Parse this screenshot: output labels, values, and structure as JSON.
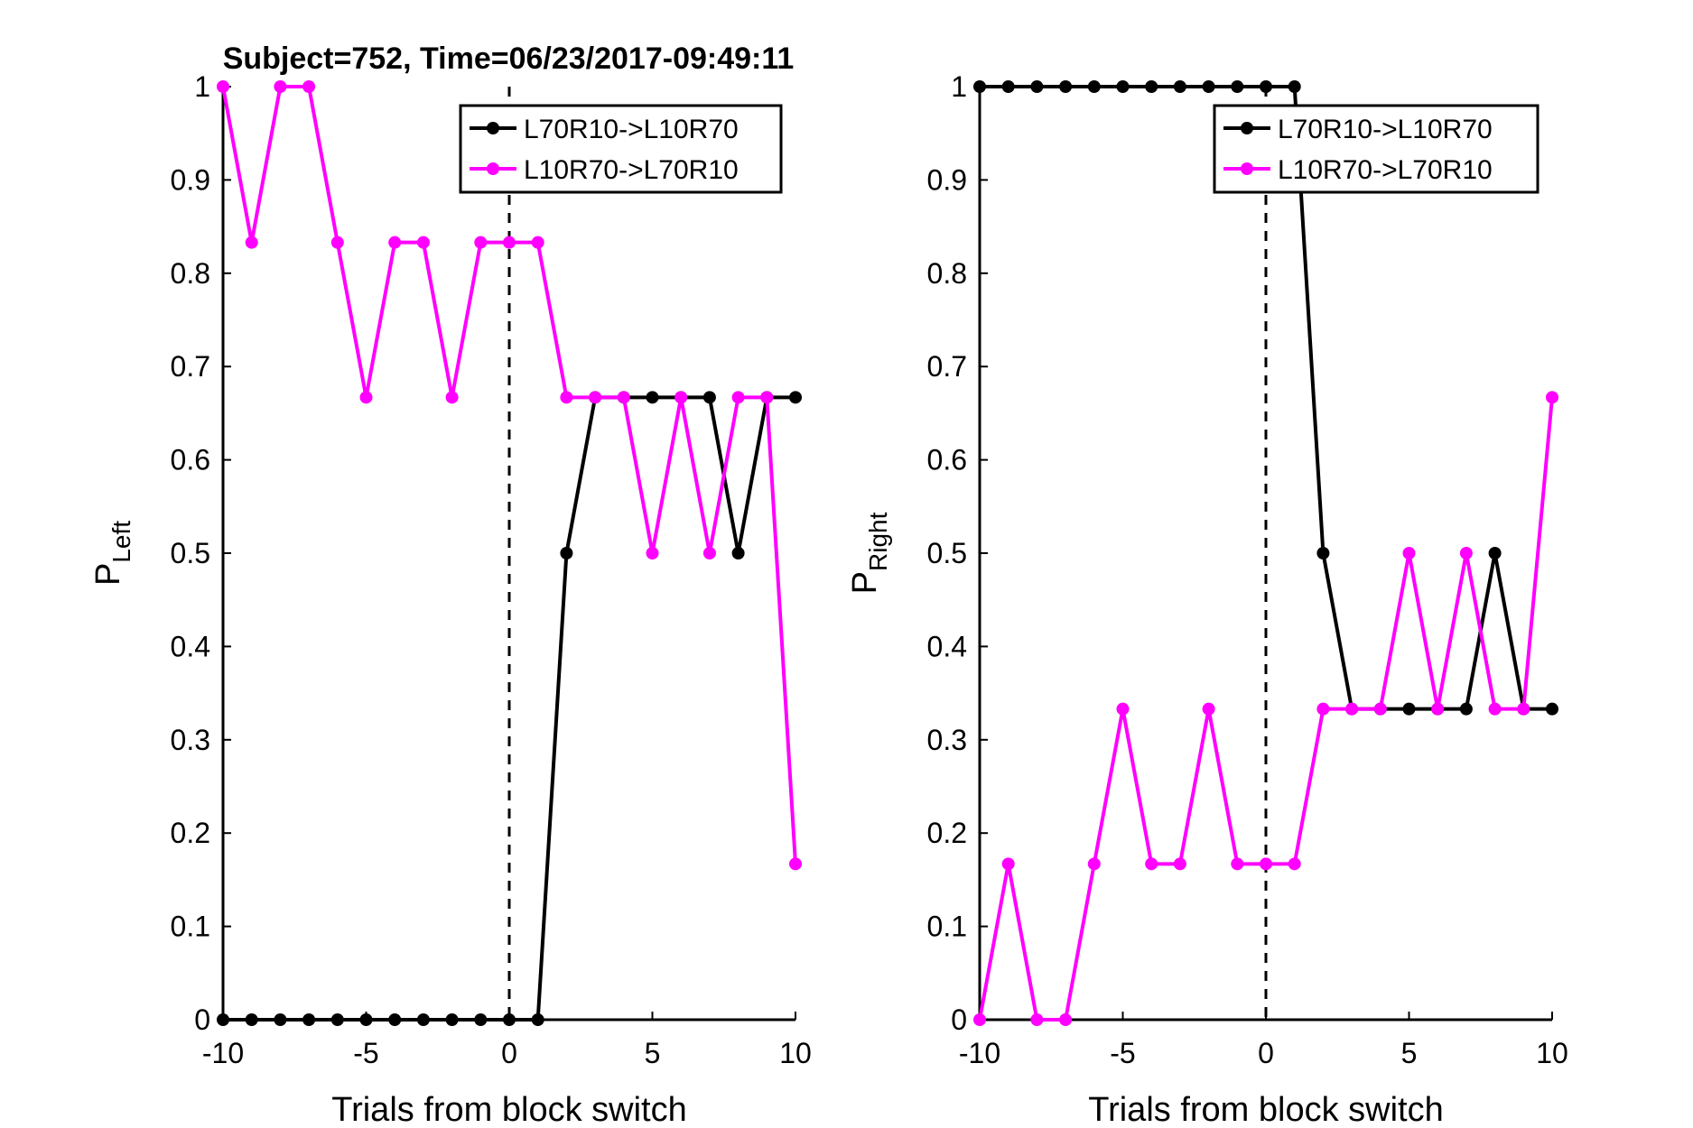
{
  "figure_title": "Subject=752, Time=06/23/2017-09:49:11",
  "colors": {
    "series_0": "#000000",
    "series_1": "#ff00ff",
    "axes": "#000000",
    "background": "#ffffff"
  },
  "chart_data": [
    {
      "type": "line",
      "title": "Subject=752, Time=06/23/2017-09:49:11",
      "xlabel": "Trials from block switch",
      "ylabel": "P",
      "ylabel_sub": "Left",
      "xlim": [
        -10,
        10
      ],
      "ylim": [
        0,
        1
      ],
      "x_ticks": [
        -10,
        -5,
        0,
        5,
        10
      ],
      "x_tick_labels": [
        "-10",
        "-5",
        "0",
        "5",
        "10"
      ],
      "y_ticks": [
        0,
        0.1,
        0.2,
        0.3,
        0.4,
        0.5,
        0.6,
        0.7,
        0.8,
        0.9,
        1
      ],
      "y_tick_labels": [
        "0",
        "0.1",
        "0.2",
        "0.3",
        "0.4",
        "0.5",
        "0.6",
        "0.7",
        "0.8",
        "0.9",
        "1"
      ],
      "vline_x": 0,
      "grid": false,
      "legend_position": "top-right",
      "x": [
        -10,
        -9,
        -8,
        -7,
        -6,
        -5,
        -4,
        -3,
        -2,
        -1,
        0,
        1,
        2,
        3,
        4,
        5,
        6,
        7,
        8,
        9,
        10
      ],
      "series": [
        {
          "name": "L70R10->L10R70",
          "color": "#000000",
          "values": [
            0,
            0,
            0,
            0,
            0,
            0,
            0,
            0,
            0,
            0,
            0,
            0,
            0.5,
            0.667,
            0.667,
            0.667,
            0.667,
            0.667,
            0.5,
            0.667,
            0.667
          ]
        },
        {
          "name": "L10R70->L70R10",
          "color": "#ff00ff",
          "values": [
            1,
            0.833,
            1,
            1,
            0.833,
            0.667,
            0.833,
            0.833,
            0.667,
            0.833,
            0.833,
            0.833,
            0.667,
            0.667,
            0.667,
            0.5,
            0.667,
            0.5,
            0.667,
            0.667,
            0.167
          ]
        }
      ]
    },
    {
      "type": "line",
      "title": "",
      "xlabel": "Trials from block switch",
      "ylabel": "P",
      "ylabel_sub": "Right",
      "xlim": [
        -10,
        10
      ],
      "ylim": [
        0,
        1
      ],
      "x_ticks": [
        -10,
        -5,
        0,
        5,
        10
      ],
      "x_tick_labels": [
        "-10",
        "-5",
        "0",
        "5",
        "10"
      ],
      "y_ticks": [
        0,
        0.1,
        0.2,
        0.3,
        0.4,
        0.5,
        0.6,
        0.7,
        0.8,
        0.9,
        1
      ],
      "y_tick_labels": [
        "0",
        "0.1",
        "0.2",
        "0.3",
        "0.4",
        "0.5",
        "0.6",
        "0.7",
        "0.8",
        "0.9",
        "1"
      ],
      "vline_x": 0,
      "grid": false,
      "legend_position": "top-right",
      "x": [
        -10,
        -9,
        -8,
        -7,
        -6,
        -5,
        -4,
        -3,
        -2,
        -1,
        0,
        1,
        2,
        3,
        4,
        5,
        6,
        7,
        8,
        9,
        10
      ],
      "series": [
        {
          "name": "L70R10->L10R70",
          "color": "#000000",
          "values": [
            1,
            1,
            1,
            1,
            1,
            1,
            1,
            1,
            1,
            1,
            1,
            1,
            0.5,
            0.333,
            0.333,
            0.333,
            0.333,
            0.333,
            0.5,
            0.333,
            0.333
          ]
        },
        {
          "name": "L10R70->L70R10",
          "color": "#ff00ff",
          "values": [
            0,
            0.167,
            0,
            0,
            0.167,
            0.333,
            0.167,
            0.167,
            0.333,
            0.167,
            0.167,
            0.167,
            0.333,
            0.333,
            0.333,
            0.5,
            0.333,
            0.5,
            0.333,
            0.333,
            0.667
          ]
        }
      ]
    }
  ]
}
